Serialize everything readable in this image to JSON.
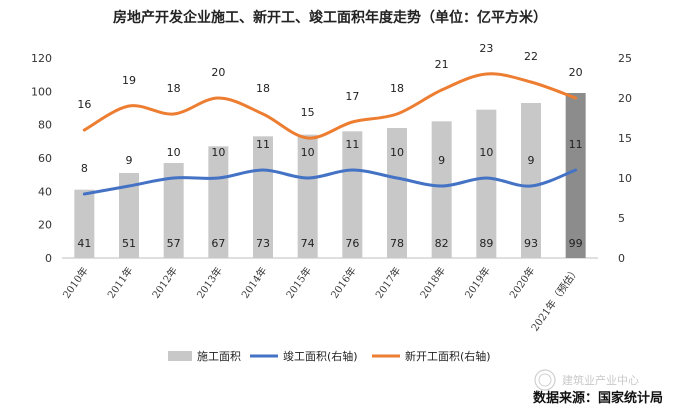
{
  "chart_data": {
    "type": "bar",
    "title": "房地产开发企业施工、新开工、竣工面积年度走势（单位：亿平方米）",
    "categories": [
      "2010年",
      "2011年",
      "2012年",
      "2013年",
      "2014年",
      "2015年",
      "2016年",
      "2017年",
      "2018年",
      "2019年",
      "2020年",
      "2021年（预估）"
    ],
    "series": [
      {
        "name": "施工面积",
        "kind": "bar",
        "axis": "left",
        "values": [
          41,
          51,
          57,
          67,
          73,
          74,
          76,
          78,
          82,
          89,
          93,
          99
        ],
        "color": "#c8c8c8",
        "highlight_color": "#8c8c8c"
      },
      {
        "name": "竣工面积(右轴)",
        "kind": "line",
        "axis": "right",
        "values": [
          8,
          9,
          10,
          10,
          11,
          10,
          11,
          10,
          9,
          10,
          9,
          11
        ],
        "color": "#4472c4"
      },
      {
        "name": "新开工面积(右轴)",
        "kind": "line",
        "axis": "right",
        "values": [
          16,
          19,
          18,
          20,
          18,
          15,
          17,
          18,
          21,
          23,
          22,
          20
        ],
        "color": "#ed7d31"
      }
    ],
    "y_left": {
      "ylim": [
        0,
        120
      ],
      "ticks": [
        0,
        20,
        40,
        60,
        80,
        100,
        120
      ]
    },
    "y_right": {
      "ylim": [
        0,
        25
      ],
      "ticks": [
        0,
        5,
        10,
        15,
        20,
        25
      ]
    },
    "grid": false,
    "legend_position": "bottom"
  },
  "source": "数据来源：国家统计局",
  "watermark": "建筑业产业中心"
}
